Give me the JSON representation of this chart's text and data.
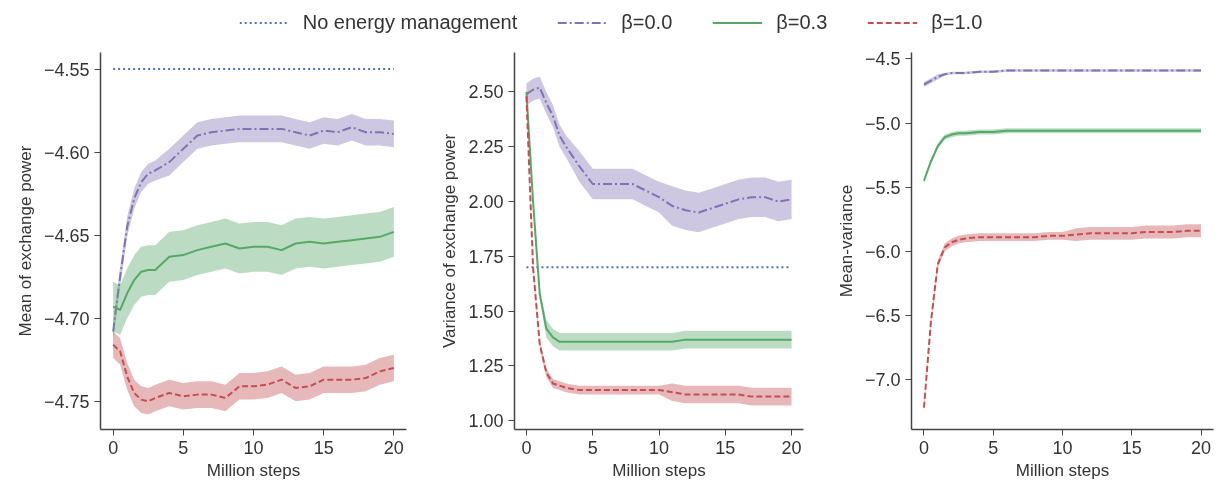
{
  "chart_data": [
    {
      "type": "line",
      "xlabel": "Million steps",
      "ylabel": "Mean of exchange power",
      "legend": "top",
      "grid": false,
      "xlim": [
        -0.9,
        20.9
      ],
      "xticks": [
        0,
        5,
        10,
        15,
        20
      ],
      "ylim": [
        -4.767,
        -4.54
      ],
      "yticks": [
        {
          "value": -4.75,
          "label": "−4.75"
        },
        {
          "value": -4.7,
          "label": "−4.70"
        },
        {
          "value": -4.65,
          "label": "−4.65"
        },
        {
          "value": -4.6,
          "label": "−4.60"
        },
        {
          "value": -4.55,
          "label": "−4.55"
        }
      ],
      "series": [
        {
          "name": "No energy management",
          "color": "#4c72b0",
          "line_style": "dotted",
          "x": [
            0,
            20
          ],
          "values": [
            -4.55,
            -4.55
          ]
        },
        {
          "name": "β=0.0",
          "color": "#8172b3",
          "line_style": "dashdot",
          "x": [
            0,
            0.5,
            1,
            1.5,
            2,
            2.5,
            3,
            4,
            5,
            6,
            7,
            8,
            9,
            10,
            11,
            12,
            13,
            14,
            15,
            16,
            17,
            18,
            19,
            20
          ],
          "values": [
            -4.708,
            -4.675,
            -4.645,
            -4.628,
            -4.618,
            -4.613,
            -4.611,
            -4.606,
            -4.598,
            -4.59,
            -4.588,
            -4.587,
            -4.586,
            -4.586,
            -4.586,
            -4.586,
            -4.588,
            -4.59,
            -4.587,
            -4.588,
            -4.585,
            -4.588,
            -4.588,
            -4.589
          ],
          "lower": [
            -4.714,
            -4.681,
            -4.651,
            -4.634,
            -4.624,
            -4.619,
            -4.617,
            -4.614,
            -4.606,
            -4.598,
            -4.596,
            -4.595,
            -4.594,
            -4.594,
            -4.594,
            -4.594,
            -4.596,
            -4.598,
            -4.595,
            -4.596,
            -4.593,
            -4.596,
            -4.596,
            -4.597
          ],
          "upper": [
            -4.702,
            -4.669,
            -4.639,
            -4.622,
            -4.612,
            -4.607,
            -4.605,
            -4.598,
            -4.59,
            -4.582,
            -4.58,
            -4.579,
            -4.578,
            -4.578,
            -4.578,
            -4.578,
            -4.58,
            -4.582,
            -4.579,
            -4.58,
            -4.577,
            -4.58,
            -4.58,
            -4.581
          ]
        },
        {
          "name": "β=0.3",
          "color": "#55a868",
          "line_style": "solid",
          "x": [
            0,
            0.5,
            1,
            1.5,
            2,
            2.5,
            3,
            4,
            5,
            6,
            7,
            8,
            9,
            10,
            11,
            12,
            13,
            14,
            15,
            16,
            17,
            18,
            19,
            20
          ],
          "values": [
            -4.693,
            -4.695,
            -4.685,
            -4.677,
            -4.672,
            -4.671,
            -4.671,
            -4.663,
            -4.662,
            -4.659,
            -4.657,
            -4.655,
            -4.658,
            -4.657,
            -4.657,
            -4.659,
            -4.655,
            -4.654,
            -4.655,
            -4.654,
            -4.653,
            -4.652,
            -4.651,
            -4.648
          ],
          "lower": [
            -4.708,
            -4.71,
            -4.7,
            -4.692,
            -4.687,
            -4.686,
            -4.686,
            -4.678,
            -4.677,
            -4.674,
            -4.672,
            -4.67,
            -4.673,
            -4.672,
            -4.672,
            -4.674,
            -4.67,
            -4.669,
            -4.67,
            -4.669,
            -4.668,
            -4.667,
            -4.666,
            -4.663
          ],
          "upper": [
            -4.678,
            -4.68,
            -4.67,
            -4.662,
            -4.657,
            -4.656,
            -4.656,
            -4.648,
            -4.647,
            -4.644,
            -4.642,
            -4.64,
            -4.643,
            -4.642,
            -4.642,
            -4.644,
            -4.64,
            -4.639,
            -4.64,
            -4.639,
            -4.638,
            -4.637,
            -4.636,
            -4.633
          ]
        },
        {
          "name": "β=1.0",
          "color": "#c44e52",
          "line_style": "dashed",
          "x": [
            0,
            0.5,
            1,
            1.5,
            2,
            2.5,
            3,
            4,
            5,
            6,
            7,
            8,
            9,
            10,
            11,
            12,
            13,
            14,
            15,
            16,
            17,
            18,
            19,
            20
          ],
          "values": [
            -4.716,
            -4.72,
            -4.735,
            -4.745,
            -4.749,
            -4.75,
            -4.748,
            -4.745,
            -4.747,
            -4.746,
            -4.746,
            -4.748,
            -4.741,
            -4.741,
            -4.74,
            -4.737,
            -4.742,
            -4.741,
            -4.737,
            -4.737,
            -4.737,
            -4.736,
            -4.732,
            -4.73
          ],
          "lower": [
            -4.724,
            -4.728,
            -4.743,
            -4.753,
            -4.757,
            -4.758,
            -4.756,
            -4.753,
            -4.755,
            -4.754,
            -4.754,
            -4.756,
            -4.749,
            -4.749,
            -4.748,
            -4.745,
            -4.75,
            -4.749,
            -4.745,
            -4.745,
            -4.745,
            -4.744,
            -4.74,
            -4.738
          ],
          "upper": [
            -4.708,
            -4.712,
            -4.727,
            -4.737,
            -4.741,
            -4.742,
            -4.74,
            -4.737,
            -4.739,
            -4.738,
            -4.738,
            -4.74,
            -4.733,
            -4.733,
            -4.732,
            -4.729,
            -4.734,
            -4.733,
            -4.729,
            -4.729,
            -4.729,
            -4.728,
            -4.724,
            -4.722
          ]
        }
      ]
    },
    {
      "type": "line",
      "xlabel": "Million steps",
      "ylabel": "Variance of exchange power",
      "grid": false,
      "xlim": [
        -0.9,
        20.9
      ],
      "xticks": [
        0,
        5,
        10,
        15,
        20
      ],
      "ylim": [
        0.96,
        2.68
      ],
      "yticks": [
        {
          "value": 1.0,
          "label": "1.00"
        },
        {
          "value": 1.25,
          "label": "1.25"
        },
        {
          "value": 1.5,
          "label": "1.50"
        },
        {
          "value": 1.75,
          "label": "1.75"
        },
        {
          "value": 2.0,
          "label": "2.00"
        },
        {
          "value": 2.25,
          "label": "2.25"
        },
        {
          "value": 2.5,
          "label": "2.50"
        }
      ],
      "series": [
        {
          "color": "#4c72b0",
          "line_style": "dotted",
          "x": [
            0,
            20
          ],
          "values": [
            1.7,
            1.7
          ]
        },
        {
          "color": "#8172b3",
          "line_style": "dashdot",
          "x": [
            0,
            0.5,
            1,
            1.5,
            2,
            2.5,
            3,
            4,
            5,
            6,
            7,
            8,
            9,
            10,
            11,
            12,
            13,
            14,
            15,
            16,
            17,
            18,
            19,
            20
          ],
          "values": [
            2.49,
            2.51,
            2.52,
            2.45,
            2.39,
            2.3,
            2.25,
            2.16,
            2.08,
            2.08,
            2.08,
            2.08,
            2.05,
            2.02,
            1.98,
            1.96,
            1.95,
            1.97,
            1.99,
            2.01,
            2.02,
            2.02,
            2.0,
            2.01
          ],
          "lower": [
            2.44,
            2.46,
            2.47,
            2.4,
            2.34,
            2.25,
            2.2,
            2.09,
            2.01,
            2.01,
            2.01,
            2.01,
            1.98,
            1.95,
            1.89,
            1.87,
            1.86,
            1.88,
            1.9,
            1.92,
            1.93,
            1.93,
            1.91,
            1.92
          ],
          "upper": [
            2.54,
            2.56,
            2.57,
            2.5,
            2.44,
            2.35,
            2.3,
            2.23,
            2.15,
            2.15,
            2.15,
            2.15,
            2.12,
            2.09,
            2.07,
            2.05,
            2.04,
            2.06,
            2.08,
            2.1,
            2.11,
            2.11,
            2.09,
            2.1
          ]
        },
        {
          "color": "#55a868",
          "line_style": "solid",
          "x": [
            0,
            0.5,
            1,
            1.5,
            2,
            2.5,
            3,
            4,
            5,
            6,
            7,
            8,
            9,
            10,
            11,
            12,
            13,
            14,
            15,
            16,
            17,
            18,
            19,
            20
          ],
          "values": [
            2.5,
            2.0,
            1.58,
            1.42,
            1.38,
            1.36,
            1.36,
            1.36,
            1.36,
            1.36,
            1.36,
            1.36,
            1.36,
            1.36,
            1.36,
            1.37,
            1.37,
            1.37,
            1.37,
            1.37,
            1.37,
            1.37,
            1.37,
            1.37
          ],
          "lower": [
            2.48,
            1.98,
            1.56,
            1.38,
            1.34,
            1.32,
            1.32,
            1.32,
            1.32,
            1.32,
            1.32,
            1.32,
            1.32,
            1.32,
            1.32,
            1.33,
            1.33,
            1.33,
            1.33,
            1.33,
            1.33,
            1.33,
            1.33,
            1.33
          ],
          "upper": [
            2.52,
            2.02,
            1.6,
            1.46,
            1.42,
            1.4,
            1.4,
            1.4,
            1.4,
            1.4,
            1.4,
            1.4,
            1.4,
            1.4,
            1.4,
            1.41,
            1.41,
            1.41,
            1.41,
            1.41,
            1.41,
            1.41,
            1.41,
            1.41
          ]
        },
        {
          "color": "#c44e52",
          "line_style": "dashed",
          "x": [
            0,
            0.5,
            1,
            1.5,
            2,
            2.5,
            3,
            4,
            5,
            6,
            7,
            8,
            9,
            10,
            11,
            12,
            13,
            14,
            15,
            16,
            17,
            18,
            19,
            20
          ],
          "values": [
            2.48,
            1.7,
            1.35,
            1.22,
            1.17,
            1.16,
            1.15,
            1.14,
            1.14,
            1.14,
            1.14,
            1.14,
            1.14,
            1.14,
            1.13,
            1.12,
            1.12,
            1.12,
            1.12,
            1.12,
            1.11,
            1.11,
            1.11,
            1.11
          ],
          "lower": [
            2.46,
            1.68,
            1.33,
            1.2,
            1.15,
            1.14,
            1.13,
            1.12,
            1.12,
            1.12,
            1.12,
            1.12,
            1.12,
            1.12,
            1.09,
            1.08,
            1.08,
            1.08,
            1.08,
            1.08,
            1.07,
            1.07,
            1.07,
            1.07
          ],
          "upper": [
            2.5,
            1.72,
            1.37,
            1.24,
            1.19,
            1.18,
            1.17,
            1.16,
            1.16,
            1.16,
            1.16,
            1.16,
            1.16,
            1.16,
            1.17,
            1.16,
            1.16,
            1.16,
            1.16,
            1.16,
            1.15,
            1.15,
            1.15,
            1.15
          ]
        }
      ]
    },
    {
      "type": "line",
      "xlabel": "Million steps",
      "ylabel": "Mean-variance",
      "grid": false,
      "xlim": [
        -0.9,
        20.9
      ],
      "xticks": [
        0,
        5,
        10,
        15,
        20
      ],
      "ylim": [
        -7.39,
        -4.45
      ],
      "yticks": [
        {
          "value": -7.0,
          "label": "−7.0"
        },
        {
          "value": -6.5,
          "label": "−6.5"
        },
        {
          "value": -6.0,
          "label": "−6.0"
        },
        {
          "value": -5.5,
          "label": "−5.5"
        },
        {
          "value": -5.0,
          "label": "−5.0"
        },
        {
          "value": -4.5,
          "label": "−4.5"
        }
      ],
      "series": [
        {
          "color": "#8172b3",
          "line_style": "dashdot",
          "x": [
            0,
            0.5,
            1,
            1.5,
            2,
            2.5,
            3,
            4,
            5,
            6,
            7,
            8,
            9,
            10,
            11,
            12,
            13,
            14,
            15,
            16,
            17,
            18,
            19,
            20
          ],
          "values": [
            -4.7,
            -4.67,
            -4.64,
            -4.62,
            -4.61,
            -4.61,
            -4.61,
            -4.6,
            -4.6,
            -4.59,
            -4.59,
            -4.59,
            -4.59,
            -4.59,
            -4.59,
            -4.59,
            -4.59,
            -4.59,
            -4.59,
            -4.59,
            -4.59,
            -4.59,
            -4.59,
            -4.59
          ],
          "lower": [
            -4.72,
            -4.69,
            -4.66,
            -4.63,
            -4.62,
            -4.62,
            -4.62,
            -4.61,
            -4.61,
            -4.6,
            -4.6,
            -4.6,
            -4.6,
            -4.6,
            -4.6,
            -4.6,
            -4.6,
            -4.6,
            -4.6,
            -4.6,
            -4.6,
            -4.6,
            -4.6,
            -4.6
          ],
          "upper": [
            -4.68,
            -4.65,
            -4.62,
            -4.61,
            -4.6,
            -4.6,
            -4.6,
            -4.59,
            -4.59,
            -4.58,
            -4.58,
            -4.58,
            -4.58,
            -4.58,
            -4.58,
            -4.58,
            -4.58,
            -4.58,
            -4.58,
            -4.58,
            -4.58,
            -4.58,
            -4.58,
            -4.58
          ]
        },
        {
          "color": "#55a868",
          "line_style": "solid",
          "x": [
            0,
            0.5,
            1,
            1.5,
            2,
            2.5,
            3,
            4,
            5,
            6,
            7,
            8,
            9,
            10,
            11,
            12,
            13,
            14,
            15,
            16,
            17,
            18,
            19,
            20
          ],
          "values": [
            -5.45,
            -5.3,
            -5.18,
            -5.11,
            -5.09,
            -5.08,
            -5.08,
            -5.07,
            -5.07,
            -5.06,
            -5.06,
            -5.06,
            -5.06,
            -5.06,
            -5.06,
            -5.06,
            -5.06,
            -5.06,
            -5.06,
            -5.06,
            -5.06,
            -5.06,
            -5.06,
            -5.06
          ],
          "lower": [
            -5.47,
            -5.32,
            -5.2,
            -5.13,
            -5.11,
            -5.1,
            -5.1,
            -5.09,
            -5.09,
            -5.08,
            -5.08,
            -5.08,
            -5.08,
            -5.08,
            -5.08,
            -5.08,
            -5.08,
            -5.08,
            -5.08,
            -5.08,
            -5.08,
            -5.08,
            -5.08,
            -5.08
          ],
          "upper": [
            -5.43,
            -5.28,
            -5.16,
            -5.09,
            -5.07,
            -5.06,
            -5.06,
            -5.05,
            -5.05,
            -5.04,
            -5.04,
            -5.04,
            -5.04,
            -5.04,
            -5.04,
            -5.04,
            -5.04,
            -5.04,
            -5.04,
            -5.04,
            -5.04,
            -5.04,
            -5.04,
            -5.04
          ]
        },
        {
          "color": "#c44e52",
          "line_style": "dashed",
          "x": [
            0,
            0.5,
            1,
            1.5,
            2,
            2.5,
            3,
            4,
            5,
            6,
            7,
            8,
            9,
            10,
            11,
            12,
            13,
            14,
            15,
            16,
            17,
            18,
            19,
            20
          ],
          "values": [
            -7.22,
            -6.55,
            -6.1,
            -5.97,
            -5.93,
            -5.91,
            -5.9,
            -5.89,
            -5.89,
            -5.89,
            -5.89,
            -5.89,
            -5.88,
            -5.88,
            -5.87,
            -5.86,
            -5.86,
            -5.86,
            -5.86,
            -5.85,
            -5.85,
            -5.85,
            -5.84,
            -5.84
          ],
          "lower": [
            -7.25,
            -6.58,
            -6.13,
            -6.0,
            -5.96,
            -5.94,
            -5.93,
            -5.92,
            -5.92,
            -5.92,
            -5.92,
            -5.92,
            -5.91,
            -5.91,
            -5.92,
            -5.91,
            -5.91,
            -5.91,
            -5.91,
            -5.9,
            -5.9,
            -5.9,
            -5.89,
            -5.89
          ],
          "upper": [
            -7.19,
            -6.52,
            -6.07,
            -5.94,
            -5.9,
            -5.88,
            -5.87,
            -5.86,
            -5.86,
            -5.86,
            -5.86,
            -5.86,
            -5.85,
            -5.85,
            -5.82,
            -5.81,
            -5.81,
            -5.81,
            -5.81,
            -5.8,
            -5.8,
            -5.8,
            -5.79,
            -5.79
          ]
        }
      ]
    }
  ]
}
